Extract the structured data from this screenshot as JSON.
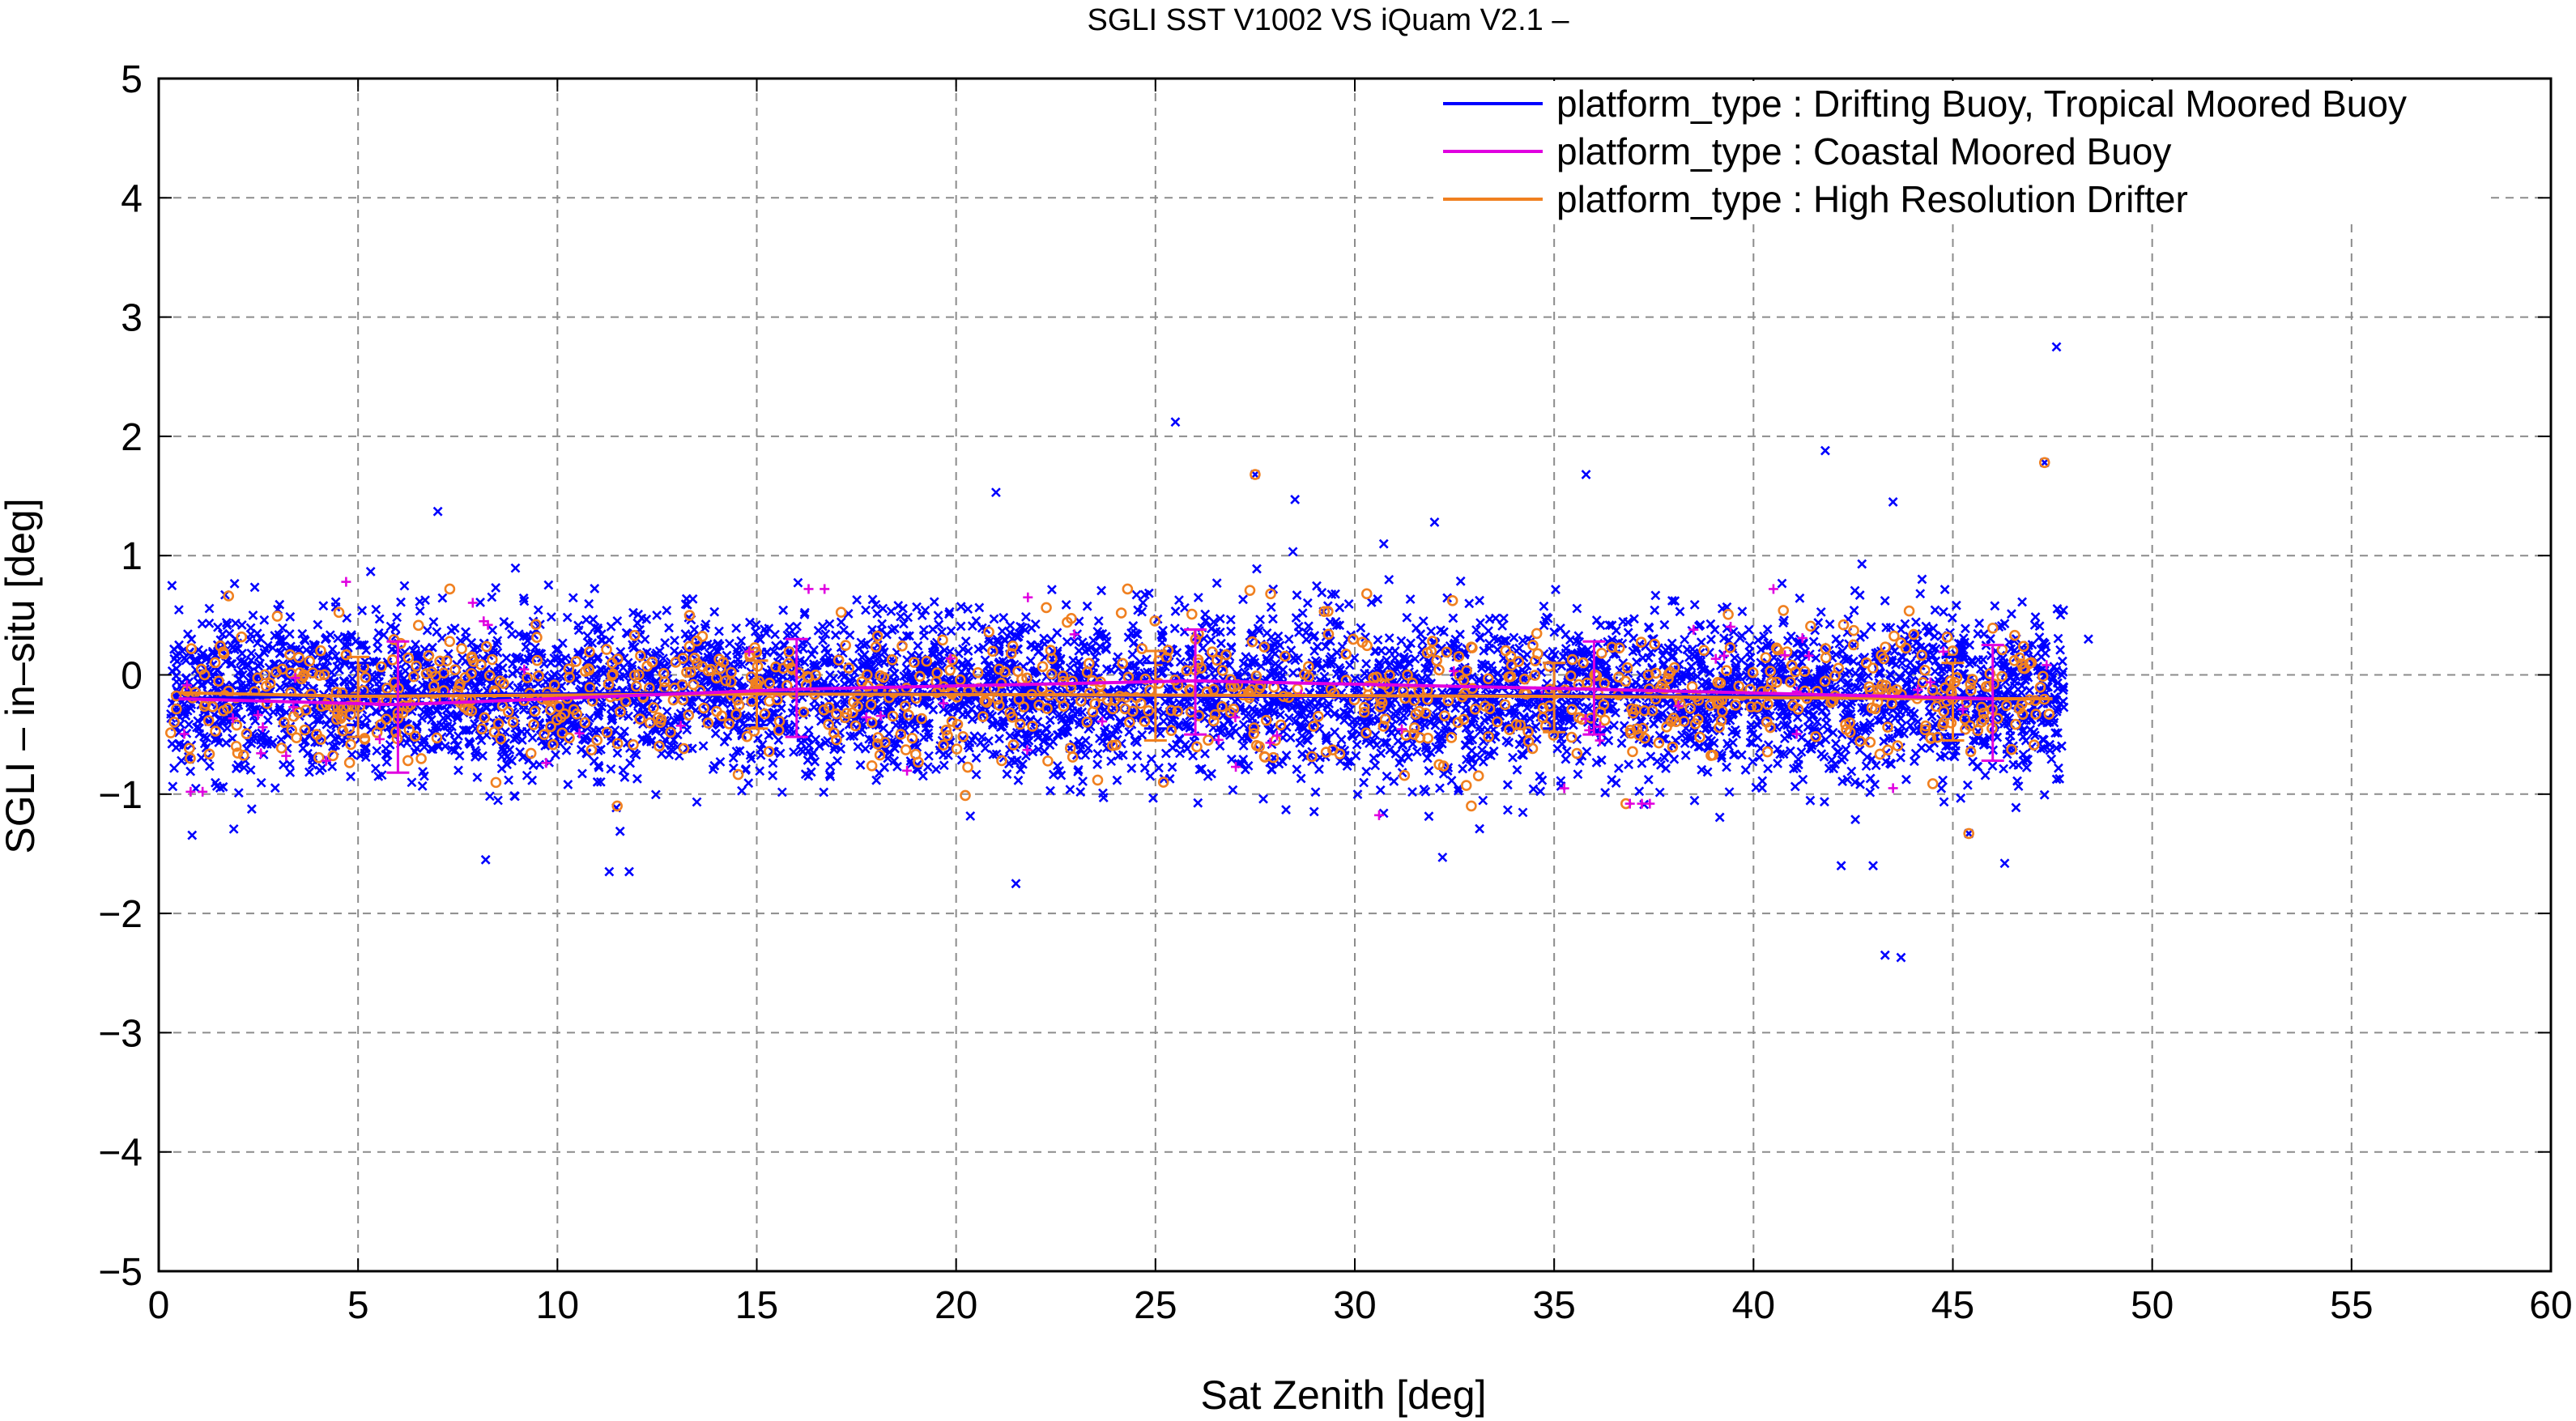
{
  "chart_data": {
    "type": "scatter",
    "title": "SGLI SST V1002 VS iQuam V2.1  –",
    "xlabel": "Sat Zenith [deg]",
    "ylabel": "SGLI – in–situ [deg]",
    "xlim": [
      0,
      60
    ],
    "ylim": [
      -5,
      5
    ],
    "x_ticks": [
      "0",
      "5",
      "10",
      "15",
      "20",
      "25",
      "30",
      "35",
      "40",
      "45",
      "50",
      "55",
      "60"
    ],
    "y_ticks": [
      "−5",
      "−4",
      "−3",
      "−2",
      "−1",
      "0",
      "1",
      "2",
      "3",
      "4",
      "5"
    ],
    "grid": true,
    "legend_position": "top-right",
    "series": [
      {
        "name": "platform_type : Drifting Buoy, Tropical Moored Buoy",
        "color": "#0000ff",
        "marker": "x",
        "mean_line": {
          "x": [
            0.5,
            5,
            10,
            15,
            20,
            25,
            30,
            35,
            40,
            45,
            47.5
          ],
          "y": [
            -0.2,
            -0.17,
            -0.16,
            -0.15,
            -0.16,
            -0.18,
            -0.18,
            -0.17,
            -0.18,
            -0.19,
            -0.2
          ]
        },
        "error_bars": [
          {
            "x": 5,
            "mean": -0.17,
            "low": -0.42,
            "high": 0.1
          },
          {
            "x": 15,
            "mean": -0.15,
            "low": -0.42,
            "high": 0.12
          },
          {
            "x": 25,
            "mean": -0.18,
            "low": -0.45,
            "high": 0.1
          },
          {
            "x": 35,
            "mean": -0.17,
            "low": -0.45,
            "high": 0.1
          },
          {
            "x": 45,
            "mean": -0.19,
            "low": -0.5,
            "high": 0.15
          }
        ],
        "outliers": [
          {
            "x": 7,
            "y": 1.37
          },
          {
            "x": 8.2,
            "y": -1.55
          },
          {
            "x": 11.3,
            "y": -1.65
          },
          {
            "x": 11.8,
            "y": -1.65
          },
          {
            "x": 21,
            "y": 1.53
          },
          {
            "x": 21.5,
            "y": -1.75
          },
          {
            "x": 25.5,
            "y": 2.12
          },
          {
            "x": 27.5,
            "y": 1.68
          },
          {
            "x": 28.5,
            "y": 1.47
          },
          {
            "x": 32,
            "y": 1.28
          },
          {
            "x": 32.2,
            "y": -1.53
          },
          {
            "x": 35.8,
            "y": 1.68
          },
          {
            "x": 41.8,
            "y": 1.88
          },
          {
            "x": 42.2,
            "y": -1.6
          },
          {
            "x": 43,
            "y": -1.6
          },
          {
            "x": 43.3,
            "y": -2.35
          },
          {
            "x": 43.7,
            "y": -2.37
          },
          {
            "x": 43.5,
            "y": 1.45
          },
          {
            "x": 47.6,
            "y": 2.75
          },
          {
            "x": 46.3,
            "y": -1.58
          },
          {
            "x": 45.4,
            "y": -1.33
          },
          {
            "x": 47.3,
            "y": 1.78
          },
          {
            "x": 48.4,
            "y": 0.3
          }
        ],
        "bulk": {
          "x_range": [
            0.3,
            47.8
          ],
          "y_center": -0.17,
          "y_spread": 0.45
        }
      },
      {
        "name": "platform_type : Coastal Moored Buoy",
        "color": "#e000e0",
        "marker": "+",
        "mean_line": {
          "x": [
            0.5,
            6,
            16,
            26,
            36,
            46
          ],
          "y": [
            -0.2,
            -0.25,
            -0.12,
            -0.05,
            -0.12,
            -0.2
          ]
        },
        "error_bars": [
          {
            "x": 6,
            "mean": -0.25,
            "low": -0.82,
            "high": 0.28
          },
          {
            "x": 16,
            "mean": -0.12,
            "low": -0.52,
            "high": 0.3
          },
          {
            "x": 26,
            "mean": -0.05,
            "low": -0.5,
            "high": 0.38
          },
          {
            "x": 36,
            "mean": -0.12,
            "low": -0.5,
            "high": 0.28
          },
          {
            "x": 46,
            "mean": -0.2,
            "low": -0.72,
            "high": 0.25
          }
        ],
        "points": [
          {
            "x": 0.8,
            "y": -0.98
          },
          {
            "x": 1.1,
            "y": -0.98
          },
          {
            "x": 4.7,
            "y": 0.78
          },
          {
            "x": 4.2,
            "y": -0.72
          },
          {
            "x": 16.3,
            "y": 0.72
          },
          {
            "x": 16.7,
            "y": 0.72
          },
          {
            "x": 21.8,
            "y": 0.65
          },
          {
            "x": 36.9,
            "y": -1.08
          },
          {
            "x": 37.2,
            "y": -1.08
          },
          {
            "x": 37.4,
            "y": -1.08
          },
          {
            "x": 40.5,
            "y": 0.72
          },
          {
            "x": 43.5,
            "y": -0.95
          }
        ]
      },
      {
        "name": "platform_type : High Resolution Drifter",
        "color": "#f08020",
        "marker": "o",
        "mean_line": {
          "x": [
            0.5,
            5,
            15,
            25,
            35,
            45,
            47.5
          ],
          "y": [
            -0.15,
            -0.18,
            -0.16,
            -0.17,
            -0.18,
            -0.2,
            -0.2
          ]
        },
        "error_bars": [
          {
            "x": 5,
            "mean": -0.18,
            "low": -0.52,
            "high": 0.15
          },
          {
            "x": 15,
            "mean": -0.16,
            "low": -0.45,
            "high": 0.12
          },
          {
            "x": 25,
            "mean": -0.17,
            "low": -0.55,
            "high": 0.2
          },
          {
            "x": 35,
            "mean": -0.18,
            "low": -0.48,
            "high": 0.1
          },
          {
            "x": 45,
            "mean": -0.2,
            "low": -0.55,
            "high": 0.1
          }
        ],
        "outliers": [
          {
            "x": 7.3,
            "y": 0.72
          },
          {
            "x": 27.5,
            "y": 1.68
          },
          {
            "x": 47.3,
            "y": 1.78
          },
          {
            "x": 45.4,
            "y": -1.33
          },
          {
            "x": 24.3,
            "y": 0.72
          },
          {
            "x": 36.8,
            "y": -1.08
          },
          {
            "x": 25.2,
            "y": -0.9
          },
          {
            "x": 30.3,
            "y": 0.68
          }
        ],
        "bulk": {
          "x_range": [
            0.3,
            47.5
          ],
          "y_center": -0.17,
          "y_spread": 0.35
        }
      }
    ]
  }
}
